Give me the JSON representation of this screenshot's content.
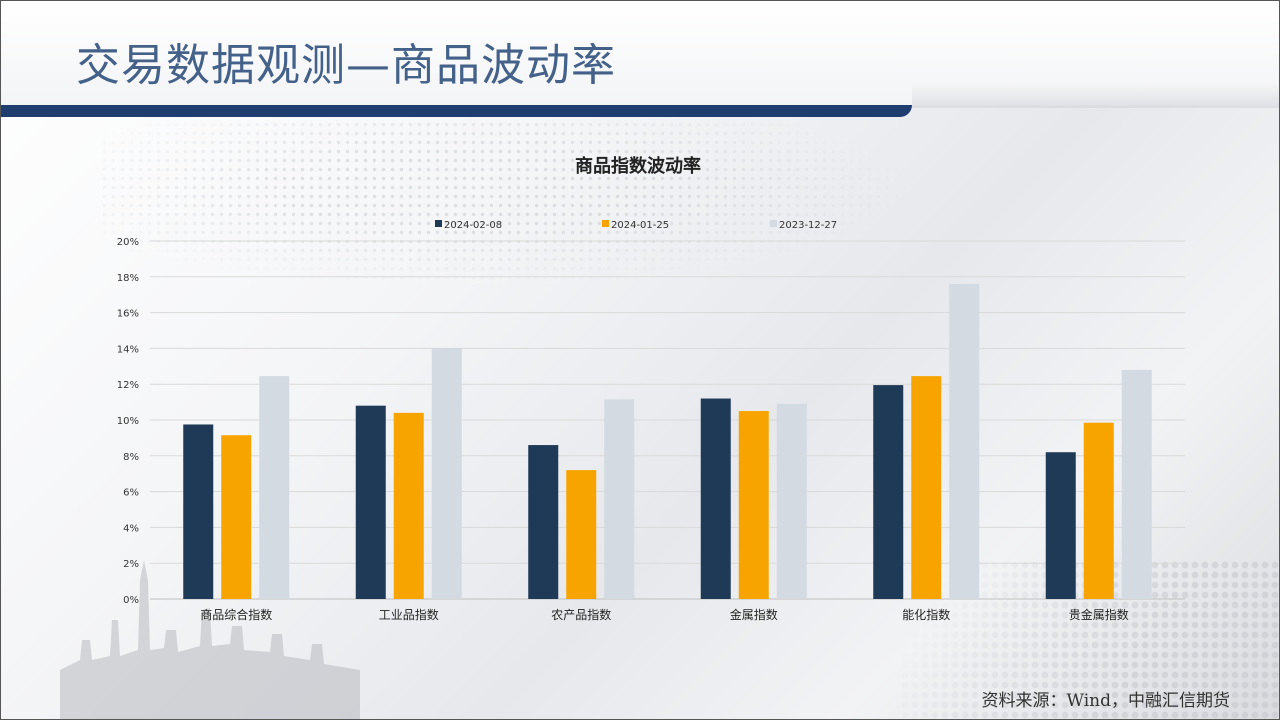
{
  "page": {
    "title": "交易数据观测—商品波动率",
    "source": "资料来源：Wind，中融汇信期货"
  },
  "colors": {
    "title_text": "#44618a",
    "title_bar": "#1f3d6e"
  },
  "chart_data": {
    "type": "bar",
    "title": "商品指数波动率",
    "categories": [
      "商品综合指数",
      "工业品指数",
      "农产品指数",
      "金属指数",
      "能化指数",
      "贵金属指数"
    ],
    "series": [
      {
        "name": "2024-02-08",
        "color": "#1f3a56",
        "values": [
          9.75,
          10.8,
          8.6,
          11.2,
          11.95,
          8.2
        ]
      },
      {
        "name": "2024-01-25",
        "color": "#f7a400",
        "values": [
          9.15,
          10.4,
          7.2,
          10.5,
          12.45,
          9.85
        ]
      },
      {
        "name": "2023-12-27",
        "color": "#d4dae2",
        "values": [
          12.45,
          14.0,
          11.15,
          10.9,
          17.6,
          12.8
        ]
      }
    ],
    "yticks": [
      "0%",
      "2%",
      "4%",
      "6%",
      "8%",
      "10%",
      "12%",
      "14%",
      "16%",
      "18%",
      "20%"
    ],
    "ylim": [
      0,
      20
    ],
    "grid": true,
    "legend": "top-center"
  }
}
